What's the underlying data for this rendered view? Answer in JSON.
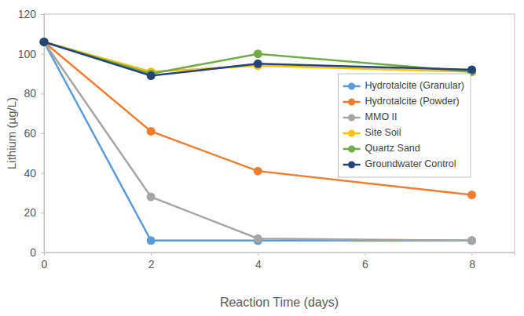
{
  "chart_data": {
    "type": "line",
    "x_label": "Reaction Time (days)",
    "y_label": "Lithium (µg/L)",
    "x": [
      0,
      2,
      4,
      8
    ],
    "xlim": [
      0,
      8.8
    ],
    "xticks": [
      0,
      2,
      4,
      6,
      8
    ],
    "ylim": [
      0,
      120
    ],
    "yticks": [
      0,
      20,
      40,
      60,
      80,
      100,
      120
    ],
    "grid": false,
    "legend": "upper right",
    "marker": "circle",
    "series": [
      {
        "name": "Hydrotalcite (Granular)",
        "color": "#5b9bd5",
        "values": [
          106,
          6,
          6,
          6
        ]
      },
      {
        "name": "Hydrotalcite (Powder)",
        "color": "#ed7d31",
        "values": [
          106,
          61,
          41,
          29
        ]
      },
      {
        "name": "MMO II",
        "color": "#a5a5a5",
        "values": [
          106,
          28,
          7,
          6
        ]
      },
      {
        "name": "Site Soil",
        "color": "#ffc000",
        "values": [
          106,
          91,
          94,
          91
        ]
      },
      {
        "name": "Quartz Sand",
        "color": "#70ad47",
        "values": [
          106,
          90,
          100,
          91
        ]
      },
      {
        "name": "Groundwater Control",
        "color": "#264478",
        "values": [
          106,
          89,
          95,
          92
        ]
      }
    ]
  }
}
